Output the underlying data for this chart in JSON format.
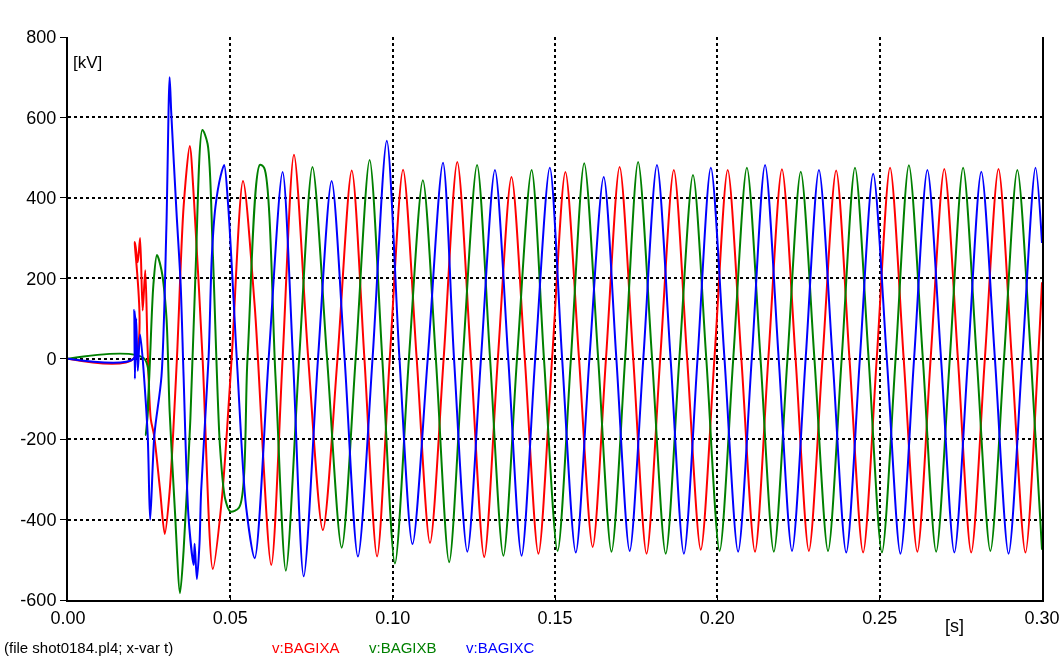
{
  "chart_data": {
    "type": "line",
    "xlabel": "[s]",
    "ylabel": "[kV]",
    "annotations": [
      "(file shot0184.pl4; x-var t)"
    ],
    "xlim": [
      0,
      0.3
    ],
    "xticks": [
      {
        "value": 0,
        "label": "0.00"
      },
      {
        "value": 0.05,
        "label": "0.05"
      },
      {
        "value": 0.1,
        "label": "0.10"
      },
      {
        "value": 0.15,
        "label": "0.15"
      },
      {
        "value": 0.2,
        "label": "0.20"
      },
      {
        "value": 0.25,
        "label": "0.25"
      },
      {
        "value": 0.3,
        "label": "0.30"
      }
    ],
    "ylim": [
      -600,
      800
    ],
    "yticks": [
      -600,
      -400,
      -200,
      0,
      200,
      400,
      600,
      800
    ],
    "grid": true,
    "legend": "bottom",
    "line_style": "solid",
    "series": [
      {
        "name": "v:BAGIXA",
        "color": "#ff0000",
        "x": [
          0,
          0.0202,
          0.0206,
          0.0215,
          0.0222,
          0.023,
          0.0238,
          0.0245,
          0.0255,
          0.0265,
          0.0283,
          0.0298,
          0.0313,
          0.0335,
          0.0356,
          0.0375,
          0.0388,
          0.0415,
          0.0446,
          0.0474,
          0.0504,
          0.0539,
          0.0575,
          0.0626,
          0.0661,
          0.0696,
          0.074,
          0.0785,
          0.083,
          0.0874,
          0.0913,
          0.0952,
          0.0991,
          0.1032,
          0.1074,
          0.1115,
          0.1157,
          0.1199,
          0.1241,
          0.1282,
          0.1324,
          0.1366,
          0.1407,
          0.1449,
          0.1491,
          0.1532,
          0.1574,
          0.1616,
          0.1657,
          0.1699,
          0.1741,
          0.1782,
          0.1824,
          0.1866,
          0.1907,
          0.1949,
          0.1991,
          0.2032,
          0.2074,
          0.2116,
          0.2157,
          0.2199,
          0.2241,
          0.2282,
          0.2324,
          0.2366,
          0.2407,
          0.2449,
          0.2491,
          0.2532,
          0.2574,
          0.2616,
          0.2657,
          0.2699,
          0.2741,
          0.2782,
          0.2824,
          0.2866,
          0.2907,
          0.2949,
          0.2988,
          0.3
        ],
        "values": [
          0,
          0,
          290,
          240,
          300,
          120,
          220,
          30,
          -150,
          -190,
          -322,
          -436,
          -330,
          -8,
          377,
          529,
          395,
          -8,
          -523,
          -348,
          0,
          442,
          132,
          -513,
          0,
          507,
          0,
          -426,
          0,
          468,
          0,
          -492,
          0,
          470,
          0,
          -458,
          0,
          489,
          0,
          -493,
          0,
          452,
          0,
          -485,
          0,
          464,
          0,
          -468,
          0,
          477,
          0,
          -485,
          0,
          469,
          0,
          -475,
          0,
          469,
          0,
          -480,
          0,
          471,
          0,
          -478,
          0,
          468,
          0,
          -482,
          0,
          475,
          0,
          -480,
          0,
          472,
          0,
          -482,
          0,
          472,
          0,
          -482,
          0,
          190
        ]
      },
      {
        "name": "v:BAGIXB",
        "color": "#008000",
        "x": [
          0,
          0.0235,
          0.024,
          0.025,
          0.0263,
          0.0274,
          0.0288,
          0.0303,
          0.0313,
          0.0329,
          0.0345,
          0.0356,
          0.0377,
          0.0393,
          0.0414,
          0.043,
          0.0446,
          0.0468,
          0.0484,
          0.05,
          0.0527,
          0.0553,
          0.0591,
          0.0604,
          0.0639,
          0.0671,
          0.0712,
          0.0753,
          0.0798,
          0.0843,
          0.0886,
          0.0929,
          0.0968,
          0.1007,
          0.105,
          0.1093,
          0.1133,
          0.1174,
          0.1216,
          0.126,
          0.13,
          0.1341,
          0.1383,
          0.1428,
          0.1466,
          0.1508,
          0.1549,
          0.159,
          0.1633,
          0.1674,
          0.1716,
          0.1756,
          0.1799,
          0.1841,
          0.1883,
          0.1925,
          0.1966,
          0.2007,
          0.2049,
          0.2091,
          0.2133,
          0.2174,
          0.2216,
          0.2257,
          0.2299,
          0.2341,
          0.2383,
          0.2424,
          0.2466,
          0.2507,
          0.2549,
          0.259,
          0.2633,
          0.2674,
          0.2716,
          0.2757,
          0.2799,
          0.2841,
          0.2883,
          0.2924,
          0.2966,
          0.3
        ],
        "values": [
          0,
          0,
          -190,
          -50,
          184,
          258,
          220,
          106,
          -130,
          -374,
          -583,
          -478,
          -148,
          219,
          569,
          534,
          263,
          -217,
          -348,
          -380,
          -370,
          2,
          482,
          475,
          -43,
          -527,
          0,
          477,
          0,
          -470,
          0,
          494,
          0,
          -509,
          0,
          444,
          0,
          -506,
          0,
          482,
          0,
          -490,
          0,
          469,
          0,
          -478,
          0,
          486,
          0,
          -480,
          0,
          489,
          0,
          -485,
          0,
          457,
          0,
          -478,
          0,
          475,
          0,
          -480,
          0,
          465,
          0,
          -478,
          0,
          475,
          0,
          -482,
          0,
          481,
          0,
          -480,
          0,
          475,
          0,
          -478,
          0,
          469,
          0,
          -475
        ]
      },
      {
        "name": "v:BAGIXC",
        "color": "#0000ff",
        "x": [
          0,
          0.0202,
          0.0204,
          0.0206,
          0.021,
          0.0215,
          0.0222,
          0.0245,
          0.0253,
          0.0266,
          0.0288,
          0.0303,
          0.0313,
          0.0318,
          0.0334,
          0.0347,
          0.0356,
          0.0371,
          0.0387,
          0.039,
          0.0397,
          0.0405,
          0.041,
          0.0433,
          0.0443,
          0.0454,
          0.047,
          0.0481,
          0.0493,
          0.0521,
          0.0548,
          0.0575,
          0.0618,
          0.0661,
          0.0693,
          0.0726,
          0.077,
          0.0812,
          0.0852,
          0.0893,
          0.0938,
          0.0982,
          0.1021,
          0.1061,
          0.1108,
          0.1155,
          0.1189,
          0.123,
          0.1272,
          0.1315,
          0.1356,
          0.1397,
          0.1439,
          0.1484,
          0.1522,
          0.1564,
          0.1606,
          0.165,
          0.1689,
          0.173,
          0.1772,
          0.1814,
          0.1856,
          0.1897,
          0.1939,
          0.198,
          0.2022,
          0.2064,
          0.2106,
          0.2147,
          0.2189,
          0.223,
          0.2272,
          0.2313,
          0.2355,
          0.2397,
          0.2439,
          0.248,
          0.2522,
          0.2564,
          0.2606,
          0.2647,
          0.2689,
          0.273,
          0.2772,
          0.2813,
          0.2855,
          0.2897,
          0.2939,
          0.298,
          0.3
        ],
        "values": [
          0,
          0,
          121,
          -50,
          100,
          -30,
          60,
          -182,
          -401,
          -190,
          -43,
          325,
          700,
          612,
          367,
          184,
          -43,
          -391,
          -513,
          -460,
          -548,
          -460,
          -330,
          2,
          255,
          377,
          454,
          482,
          385,
          -16,
          -364,
          -496,
          0,
          464,
          0,
          -541,
          0,
          442,
          0,
          -492,
          0,
          542,
          0,
          -461,
          0,
          487,
          0,
          -480,
          0,
          469,
          0,
          -490,
          0,
          475,
          0,
          -482,
          0,
          452,
          0,
          -478,
          0,
          482,
          0,
          -485,
          0,
          475,
          0,
          -480,
          0,
          482,
          0,
          -478,
          0,
          469,
          0,
          -482,
          0,
          460,
          0,
          -485,
          0,
          469,
          0,
          -482,
          0,
          465,
          0,
          -485,
          0,
          475,
          288
        ]
      }
    ]
  }
}
